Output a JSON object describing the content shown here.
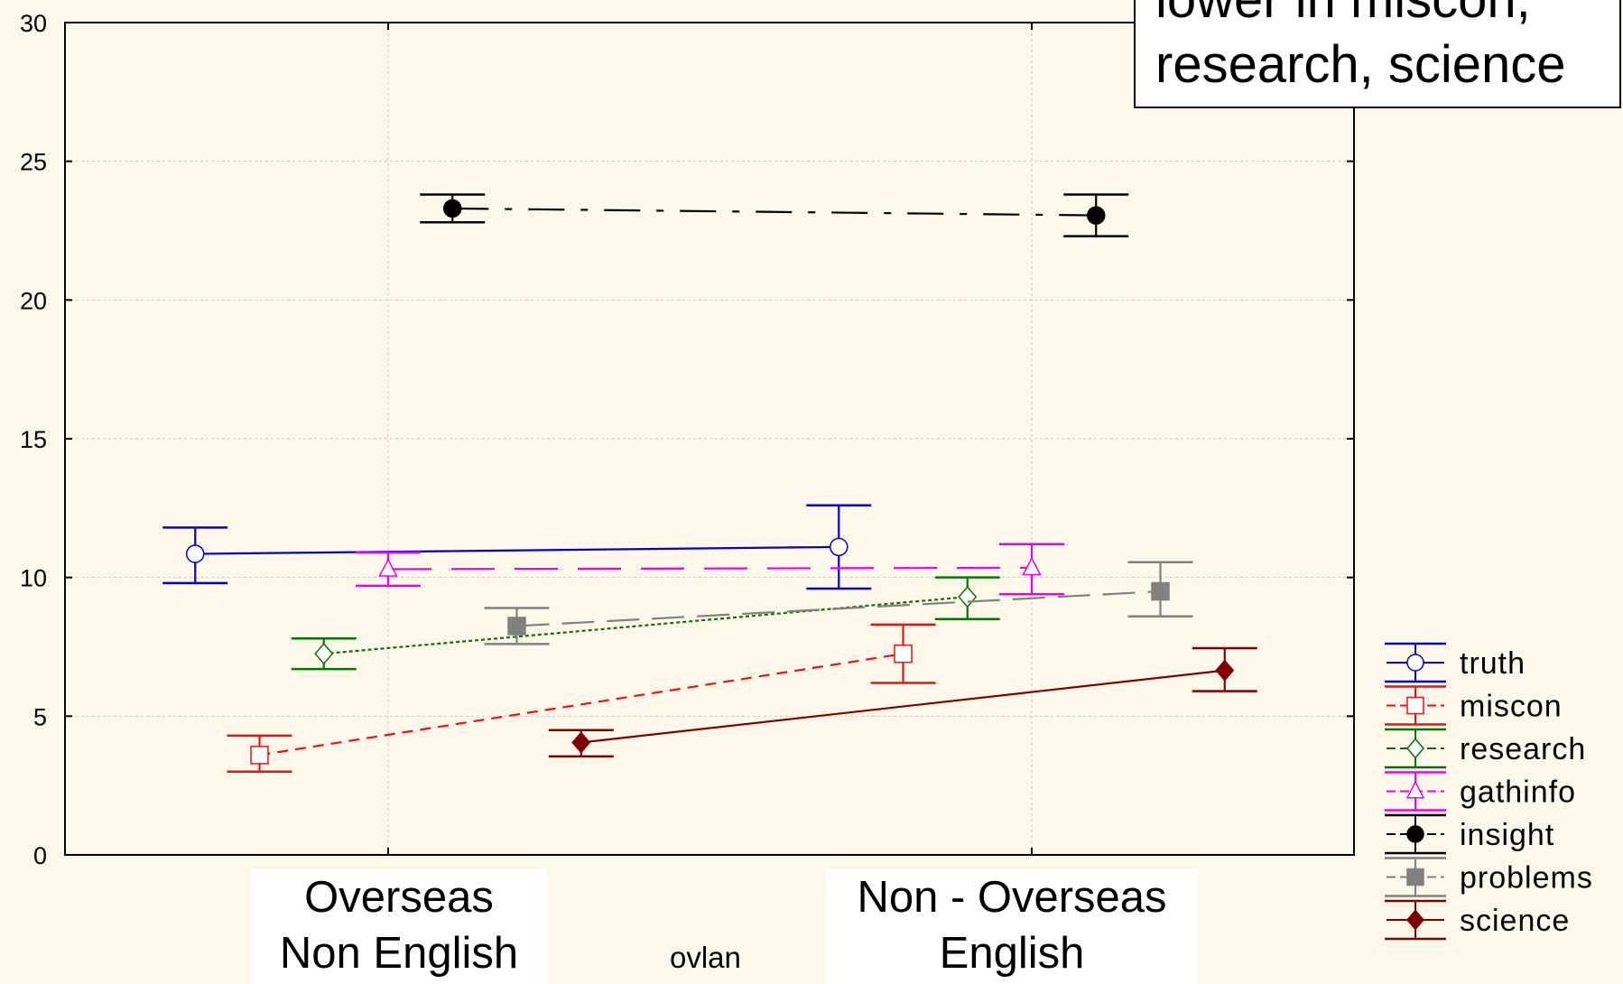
{
  "chart_data": {
    "type": "line",
    "xlabel": "ovlan",
    "categories": [
      "Overseas\nNon English",
      "Non - Overseas\nEnglish"
    ],
    "category_lines": [
      [
        "Overseas",
        "Non English"
      ],
      [
        "Non - Overseas",
        "English"
      ]
    ],
    "ylim": [
      0,
      30
    ],
    "yticks": [
      0,
      5,
      10,
      15,
      20,
      25,
      30
    ],
    "grid": true,
    "legend_position": "bottom-right",
    "annotation_lines": [
      "lower in miscon,",
      "research, science"
    ],
    "series": [
      {
        "name": "truth",
        "color": "#0000dd",
        "marker": "circle-open",
        "dash": "solid",
        "offset": -0.45,
        "values": [
          10.85,
          11.1
        ],
        "ci_low": [
          9.8,
          9.6
        ],
        "ci_high": [
          11.8,
          12.6
        ]
      },
      {
        "name": "miscon",
        "color": "#ee1111",
        "marker": "square-open",
        "dash": "12,8",
        "offset": -0.3,
        "values": [
          3.6,
          7.25
        ],
        "ci_low": [
          3.0,
          6.2
        ],
        "ci_high": [
          4.3,
          8.3
        ]
      },
      {
        "name": "research",
        "color": "#007700",
        "marker": "diamond-open",
        "dash": "4,3",
        "offset": -0.15,
        "values": [
          7.25,
          9.3
        ],
        "ci_low": [
          6.7,
          8.5
        ],
        "ci_high": [
          7.8,
          10.0
        ]
      },
      {
        "name": "gathinfo",
        "color": "#ee00ee",
        "marker": "triangle-open",
        "dash": "48,22",
        "offset": 0,
        "values": [
          10.3,
          10.35
        ],
        "ci_low": [
          9.7,
          9.4
        ],
        "ci_high": [
          10.9,
          11.2
        ]
      },
      {
        "name": "insight",
        "color": "#000000",
        "marker": "circle-filled",
        "dash": "40,18,8,18",
        "offset": 0.15,
        "values": [
          23.3,
          23.05
        ],
        "ci_low": [
          22.8,
          22.3
        ],
        "ci_high": [
          23.8,
          23.8
        ]
      },
      {
        "name": "problems",
        "color": "#808080",
        "marker": "square-filled",
        "dash": "36,14",
        "offset": 0.3,
        "values": [
          8.25,
          9.5
        ],
        "ci_low": [
          7.6,
          8.6
        ],
        "ci_high": [
          8.9,
          10.55
        ]
      },
      {
        "name": "science",
        "color": "#800000",
        "marker": "diamond-filled",
        "dash": "solid",
        "offset": 0.45,
        "values": [
          4.05,
          6.65
        ],
        "ci_low": [
          3.55,
          5.9
        ],
        "ci_high": [
          4.5,
          7.45
        ]
      }
    ]
  }
}
